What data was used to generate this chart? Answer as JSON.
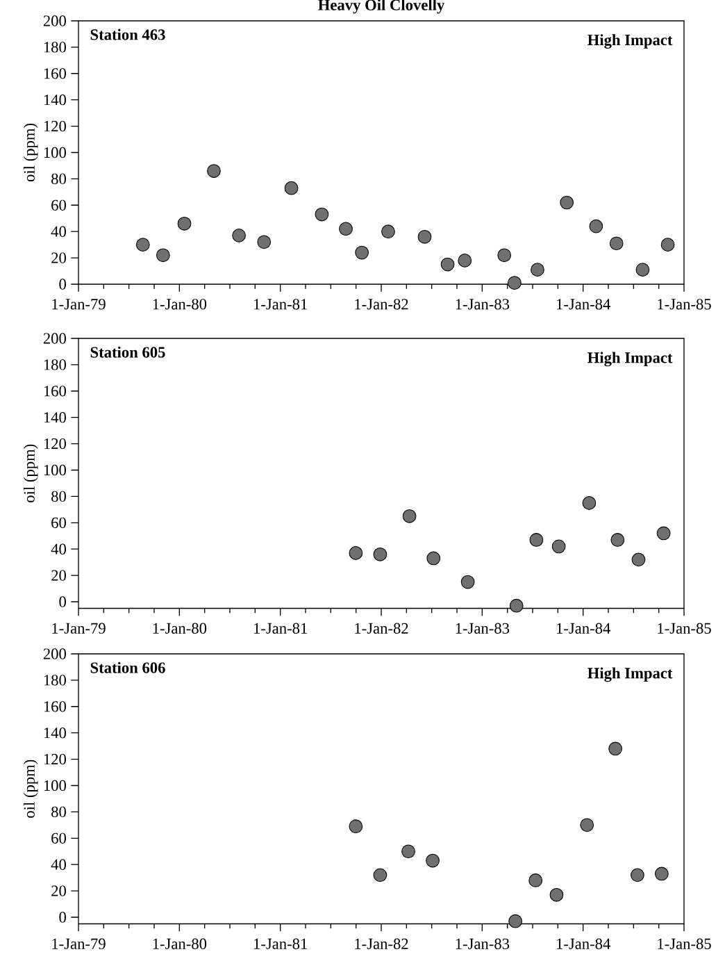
{
  "chart_data": [
    {
      "type": "scatter",
      "title": "Heavy Oil Clovelly",
      "ylabel": "oil (ppm)",
      "annotations": [
        "Station 463",
        "High Impact"
      ],
      "xlim": [
        "1979-01-01",
        "1985-01-01"
      ],
      "ylim": [
        0,
        200
      ],
      "xticks": [
        {
          "value": "1979-01-01",
          "label": "1-Jan-79"
        },
        {
          "value": "1980-01-01",
          "label": "1-Jan-80"
        },
        {
          "value": "1981-01-01",
          "label": "1-Jan-81"
        },
        {
          "value": "1982-01-01",
          "label": "1-Jan-82"
        },
        {
          "value": "1983-01-01",
          "label": "1-Jan-83"
        },
        {
          "value": "1984-01-01",
          "label": "1-Jan-84"
        },
        {
          "value": "1985-01-01",
          "label": "1-Jan-85"
        }
      ],
      "yticks": [
        0,
        20,
        40,
        60,
        80,
        100,
        120,
        140,
        160,
        180,
        200
      ],
      "series": [
        {
          "color": "#707070",
          "x": [
            "1979-08-22",
            "1979-11-03",
            "1980-01-19",
            "1980-05-05",
            "1980-08-04",
            "1980-11-03",
            "1981-02-10",
            "1981-05-31",
            "1981-08-26",
            "1981-10-23",
            "1982-01-26",
            "1982-06-07",
            "1982-08-29",
            "1982-10-30",
            "1983-03-22",
            "1983-04-28",
            "1983-07-20",
            "1983-11-03",
            "1984-02-17",
            "1984-05-01",
            "1984-08-04",
            "1984-11-03"
          ],
          "values": [
            30,
            22,
            46,
            86,
            37,
            32,
            73,
            53,
            42,
            24,
            40,
            36,
            15,
            18,
            22,
            1,
            11,
            62,
            44,
            31,
            11,
            30
          ]
        }
      ]
    },
    {
      "type": "scatter",
      "ylabel": "oil (ppm)",
      "annotations": [
        "Station 605",
        "High Impact"
      ],
      "xlim": [
        "1979-01-01",
        "1985-01-01"
      ],
      "ylim": [
        -5,
        200
      ],
      "xticks": [
        {
          "value": "1979-01-01",
          "label": "1-Jan-79"
        },
        {
          "value": "1980-01-01",
          "label": "1-Jan-80"
        },
        {
          "value": "1981-01-01",
          "label": "1-Jan-81"
        },
        {
          "value": "1982-01-01",
          "label": "1-Jan-82"
        },
        {
          "value": "1983-01-01",
          "label": "1-Jan-83"
        },
        {
          "value": "1984-01-01",
          "label": "1-Jan-84"
        },
        {
          "value": "1985-01-01",
          "label": "1-Jan-85"
        }
      ],
      "yticks": [
        0,
        20,
        40,
        60,
        80,
        100,
        120,
        140,
        160,
        180,
        200
      ],
      "series": [
        {
          "color": "#707070",
          "x": [
            "1981-10-01",
            "1981-12-28",
            "1982-04-13",
            "1982-07-09",
            "1982-11-10",
            "1983-05-05",
            "1983-07-16",
            "1983-10-05",
            "1984-01-23",
            "1984-05-05",
            "1984-07-20",
            "1984-10-19"
          ],
          "values": [
            37,
            36,
            65,
            33,
            15,
            -3,
            47,
            42,
            75,
            47,
            32,
            52
          ]
        }
      ]
    },
    {
      "type": "scatter",
      "ylabel": "oil (ppm)",
      "annotations": [
        "Station 606",
        "High Impact"
      ],
      "xlim": [
        "1979-01-01",
        "1985-01-01"
      ],
      "ylim": [
        -5,
        200
      ],
      "xticks": [
        {
          "value": "1979-01-01",
          "label": "1-Jan-79"
        },
        {
          "value": "1980-01-01",
          "label": "1-Jan-80"
        },
        {
          "value": "1981-01-01",
          "label": "1-Jan-81"
        },
        {
          "value": "1982-01-01",
          "label": "1-Jan-82"
        },
        {
          "value": "1983-01-01",
          "label": "1-Jan-83"
        },
        {
          "value": "1984-01-01",
          "label": "1-Jan-84"
        },
        {
          "value": "1985-01-01",
          "label": "1-Jan-85"
        }
      ],
      "yticks": [
        0,
        20,
        40,
        60,
        80,
        100,
        120,
        140,
        160,
        180,
        200
      ],
      "series": [
        {
          "color": "#707070",
          "x": [
            "1981-10-01",
            "1981-12-28",
            "1982-04-09",
            "1982-07-06",
            "1983-05-01",
            "1983-07-13",
            "1983-09-27",
            "1984-01-15",
            "1984-04-27",
            "1984-07-16",
            "1984-10-12"
          ],
          "values": [
            69,
            32,
            50,
            43,
            -3,
            28,
            17,
            70,
            128,
            32,
            33
          ]
        }
      ]
    }
  ]
}
